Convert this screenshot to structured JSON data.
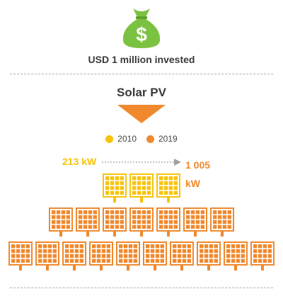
{
  "header": {
    "icon": "money-bag-icon",
    "subtitle": "USD 1 million invested"
  },
  "section": {
    "title": "Solar PV"
  },
  "legend": [
    {
      "label": "2010",
      "color": "#f7c30a"
    },
    {
      "label": "2019",
      "color": "#f0892e"
    }
  ],
  "comparison": {
    "value_2010": "213 kW",
    "value_2019": "1 005 kW",
    "panels_2010": 3,
    "panels_2019_rows": [
      7,
      10
    ]
  },
  "colors": {
    "bag_green": "#7cc242",
    "yellow": "#f7c30a",
    "orange": "#f0892e",
    "arrow_gray": "#a0a0a0"
  }
}
